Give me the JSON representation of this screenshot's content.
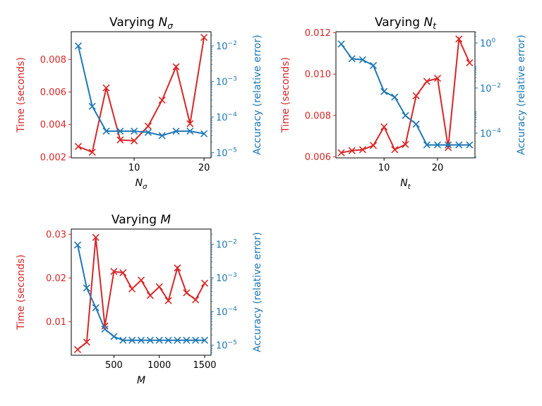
{
  "colors": {
    "time": "#d62728",
    "accuracy": "#1f77b4"
  },
  "chart_data": [
    {
      "type": "line",
      "title": {
        "prefix": "Varying ",
        "symbol": "N",
        "sub": "σ"
      },
      "xlabel": {
        "symbol": "N",
        "sub": "σ"
      },
      "ylabel_left": "Time (seconds)",
      "ylabel_right": "Accuracy (relative error)",
      "xlim": [
        1,
        21
      ],
      "ylim_left": [
        0.00195,
        0.0097
      ],
      "ylim_right_log10": [
        -5.15,
        -1.6
      ],
      "xticks": [
        10,
        20
      ],
      "xtick_labels": [
        "10",
        "20"
      ],
      "yticks_left": [
        0.002,
        0.004,
        0.006,
        0.008
      ],
      "ytick_labels_left": [
        "0.002",
        "0.004",
        "0.006",
        "0.008"
      ],
      "yticks_right_log10": [
        -5,
        -4,
        -3,
        -2
      ],
      "ytick_labels_right": [
        {
          "base": "10",
          "exp": "−5"
        },
        {
          "base": "10",
          "exp": "−4"
        },
        {
          "base": "10",
          "exp": "−3"
        },
        {
          "base": "10",
          "exp": "−2"
        }
      ],
      "series": [
        {
          "axis": "left",
          "x": [
            2,
            4,
            6,
            8,
            10,
            12,
            14,
            16,
            18,
            20
          ],
          "values": [
            0.00265,
            0.0023,
            0.00625,
            0.00305,
            0.003,
            0.0039,
            0.0055,
            0.00755,
            0.00405,
            0.00935
          ]
        },
        {
          "axis": "right",
          "x": [
            2,
            4,
            6,
            8,
            10,
            12,
            14,
            16,
            18,
            20
          ],
          "values": [
            0.01,
            0.0002,
            4e-05,
            4e-05,
            4e-05,
            3.7e-05,
            3e-05,
            4e-05,
            4e-05,
            3.4e-05
          ]
        }
      ]
    },
    {
      "type": "line",
      "title": {
        "prefix": "Varying ",
        "symbol": "N",
        "sub": "t"
      },
      "xlabel": {
        "symbol": "N",
        "sub": "t"
      },
      "ylabel_left": "Time (seconds)",
      "ylabel_right": "Accuracy (relative error)",
      "xlim": [
        1,
        27
      ],
      "ylim_left": [
        0.00595,
        0.01205
      ],
      "ylim_right_log10": [
        -5.1,
        0.5
      ],
      "xticks": [
        10,
        20
      ],
      "xtick_labels": [
        "10",
        "20"
      ],
      "yticks_left": [
        0.006,
        0.008,
        0.01,
        0.012
      ],
      "ytick_labels_left": [
        "0.006",
        "0.008",
        "0.010",
        "0.012"
      ],
      "yticks_right_log10": [
        -4,
        -2,
        0
      ],
      "ytick_labels_right": [
        {
          "base": "10",
          "exp": "−4"
        },
        {
          "base": "10",
          "exp": "−2"
        },
        {
          "base": "10",
          "exp": "0"
        }
      ],
      "series": [
        {
          "axis": "left",
          "x": [
            2,
            4,
            6,
            8,
            10,
            12,
            14,
            16,
            18,
            20,
            22,
            24,
            26
          ],
          "values": [
            0.0062,
            0.0063,
            0.00635,
            0.00655,
            0.00745,
            0.00635,
            0.0066,
            0.00895,
            0.00965,
            0.0098,
            0.00645,
            0.0117,
            0.01055
          ]
        },
        {
          "axis": "right",
          "x": [
            2,
            4,
            6,
            8,
            10,
            12,
            14,
            16,
            18,
            20,
            22,
            24,
            26
          ],
          "values": [
            0.9,
            0.2,
            0.18,
            0.1,
            0.007,
            0.004,
            0.0006,
            0.00025,
            3e-05,
            3e-05,
            3e-05,
            3e-05,
            3e-05
          ]
        }
      ]
    },
    {
      "type": "line",
      "title": {
        "prefix": "Varying ",
        "symbol": "M",
        "sub": ""
      },
      "xlabel": {
        "symbol": "M",
        "sub": ""
      },
      "ylabel_left": "Time (seconds)",
      "ylabel_right": "Accuracy (relative error)",
      "xlim": [
        30,
        1570
      ],
      "ylim_left": [
        0.0023,
        0.0312
      ],
      "ylim_right_log10": [
        -5.3,
        -1.55
      ],
      "xticks": [
        500,
        1000,
        1500
      ],
      "xtick_labels": [
        "500",
        "1000",
        "1500"
      ],
      "yticks_left": [
        0.01,
        0.02,
        0.03
      ],
      "ytick_labels_left": [
        "0.01",
        "0.02",
        "0.03"
      ],
      "yticks_right_log10": [
        -5,
        -4,
        -3,
        -2
      ],
      "ytick_labels_right": [
        {
          "base": "10",
          "exp": "−5"
        },
        {
          "base": "10",
          "exp": "−4"
        },
        {
          "base": "10",
          "exp": "−3"
        },
        {
          "base": "10",
          "exp": "−2"
        }
      ],
      "series": [
        {
          "axis": "left",
          "x": [
            100,
            200,
            300,
            400,
            500,
            600,
            700,
            800,
            900,
            1000,
            1100,
            1200,
            1300,
            1400,
            1500
          ],
          "values": [
            0.0036,
            0.0053,
            0.0293,
            0.009,
            0.0215,
            0.0212,
            0.0175,
            0.0195,
            0.016,
            0.018,
            0.0148,
            0.0223,
            0.0166,
            0.015,
            0.0188
          ]
        },
        {
          "axis": "right",
          "x": [
            100,
            200,
            300,
            400,
            500,
            600,
            700,
            800,
            900,
            1000,
            1100,
            1200,
            1300,
            1400,
            1500
          ],
          "values": [
            0.0095,
            0.0005,
            0.00013,
            3e-05,
            1.8e-05,
            1.4e-05,
            1.4e-05,
            1.4e-05,
            1.4e-05,
            1.4e-05,
            1.4e-05,
            1.4e-05,
            1.4e-05,
            1.4e-05,
            1.4e-05
          ]
        }
      ]
    }
  ]
}
